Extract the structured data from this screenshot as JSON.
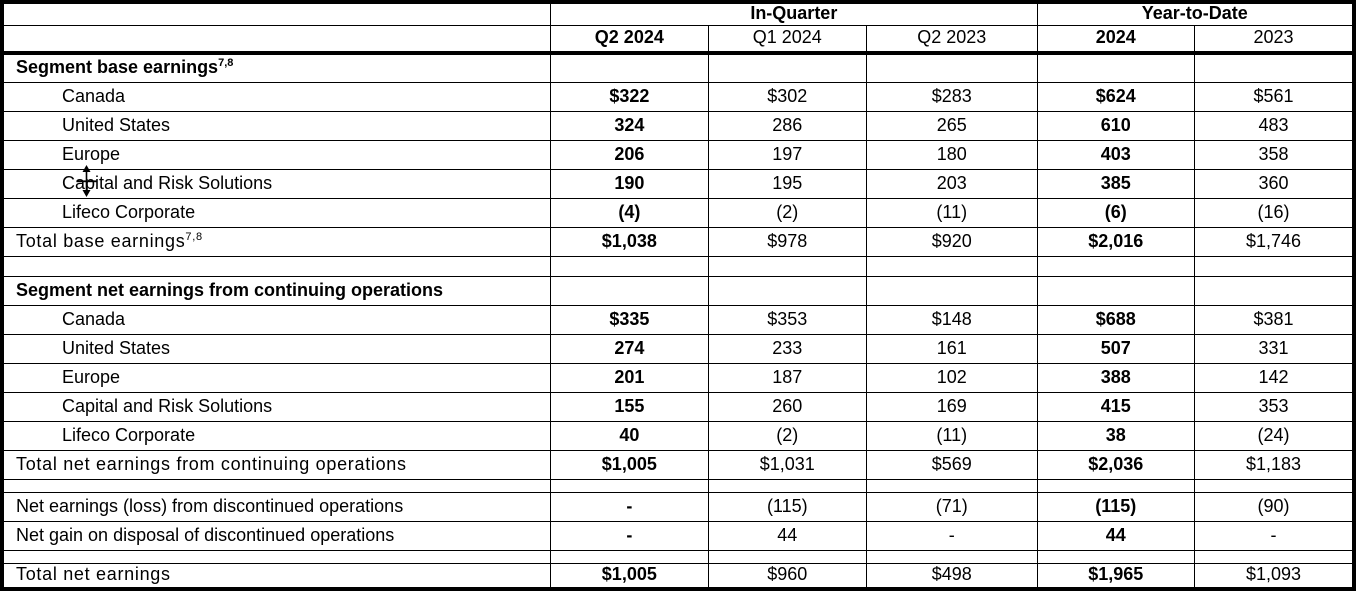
{
  "colors": {
    "grid": "#000000",
    "text": "#000000",
    "highlight_column_bg": "#f1f1f1",
    "background": "#ffffff"
  },
  "cursor": {
    "type": "row-resize"
  },
  "table": {
    "header": {
      "groups": [
        {
          "label": "In-Quarter",
          "span": 3
        },
        {
          "label": "Year-to-Date",
          "span": 2
        }
      ],
      "columns": [
        "Q2 2024",
        "Q1 2024",
        "Q2 2023",
        "2024",
        "2023"
      ],
      "highlighted_columns": [
        "Q2 2024",
        "2024"
      ]
    },
    "rows": [
      {
        "type": "section",
        "label": "Segment base earnings",
        "footnote": "7,8",
        "values": [
          "",
          "",
          "",
          "",
          ""
        ]
      },
      {
        "type": "segment",
        "label": "Canada",
        "values": [
          "$322",
          "$302",
          "$283",
          "$624",
          "$561"
        ]
      },
      {
        "type": "segment",
        "label": "United States",
        "values": [
          "324",
          "286",
          "265",
          "610",
          "483"
        ]
      },
      {
        "type": "segment",
        "label": "Europe",
        "values": [
          "206",
          "197",
          "180",
          "403",
          "358"
        ]
      },
      {
        "type": "segment",
        "label": "Capital and Risk Solutions",
        "values": [
          "190",
          "195",
          "203",
          "385",
          "360"
        ]
      },
      {
        "type": "segment",
        "label": "Lifeco Corporate",
        "values": [
          "(4)",
          "(2)",
          "(11)",
          "(6)",
          "(16)"
        ]
      },
      {
        "type": "total",
        "label": "Total base earnings",
        "footnote": "7,8",
        "values": [
          "$1,038",
          "$978",
          "$920",
          "$2,016",
          "$1,746"
        ]
      },
      {
        "type": "blank",
        "label": "",
        "values": [
          "",
          "",
          "",
          "",
          ""
        ]
      },
      {
        "type": "section",
        "label": "Segment net earnings from continuing operations",
        "values": [
          "",
          "",
          "",
          "",
          ""
        ]
      },
      {
        "type": "segment",
        "label": "Canada",
        "values": [
          "$335",
          "$353",
          "$148",
          "$688",
          "$381"
        ]
      },
      {
        "type": "segment",
        "label": "United States",
        "values": [
          "274",
          "233",
          "161",
          "507",
          "331"
        ]
      },
      {
        "type": "segment",
        "label": "Europe",
        "values": [
          "201",
          "187",
          "102",
          "388",
          "142"
        ]
      },
      {
        "type": "segment",
        "label": "Capital and Risk Solutions",
        "values": [
          "155",
          "260",
          "169",
          "415",
          "353"
        ]
      },
      {
        "type": "segment",
        "label": "Lifeco Corporate",
        "values": [
          "40",
          "(2)",
          "(11)",
          "38",
          "(24)"
        ]
      },
      {
        "type": "total",
        "label": "Total net earnings from continuing operations",
        "values": [
          "$1,005",
          "$1,031",
          "$569",
          "$2,036",
          "$1,183"
        ]
      },
      {
        "type": "blank-thin",
        "label": "",
        "values": [
          "",
          "",
          "",
          "",
          ""
        ]
      },
      {
        "type": "normal",
        "label": "Net earnings (loss) from discontinued operations",
        "values": [
          "-",
          "(115)",
          "(71)",
          "(115)",
          "(90)"
        ]
      },
      {
        "type": "normal",
        "label": "Net gain on disposal of discontinued operations",
        "values": [
          "-",
          "44",
          "-",
          "44",
          "-"
        ]
      },
      {
        "type": "blank-thin",
        "label": "",
        "values": [
          "",
          "",
          "",
          "",
          ""
        ]
      },
      {
        "type": "total-last",
        "label": "Total net earnings",
        "values": [
          "$1,005",
          "$960",
          "$498",
          "$1,965",
          "$1,093"
        ]
      }
    ]
  }
}
